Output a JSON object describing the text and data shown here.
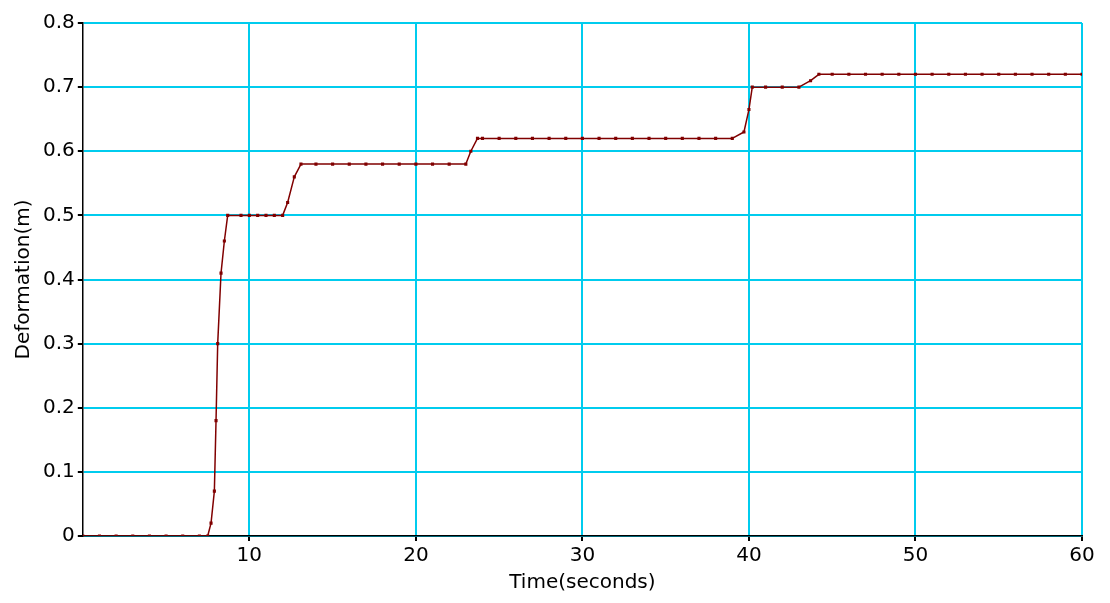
{
  "chart_data": {
    "type": "line",
    "xlabel": "Time(seconds)",
    "ylabel": "Deformation(m)",
    "xlim": [
      0,
      60
    ],
    "xticks": [
      10,
      20,
      30,
      40,
      50,
      60
    ],
    "ylim": [
      0,
      0.8
    ],
    "yticks": [
      0,
      0.1,
      0.2,
      0.3,
      0.4,
      0.5,
      0.6,
      0.7,
      0.8
    ],
    "grid": true,
    "legend": false,
    "marker": "square",
    "line_style": "solid",
    "series": [
      {
        "color": "#800000",
        "x": [
          0,
          1,
          2,
          3,
          4,
          5,
          6,
          7,
          7.5,
          7.7,
          7.9,
          8.0,
          8.1,
          8.3,
          8.5,
          8.7,
          9.5,
          10,
          10.5,
          11,
          11.5,
          12,
          12.3,
          12.7,
          13.1,
          14,
          15,
          16,
          17,
          18,
          19,
          20,
          21,
          22,
          23,
          23.3,
          23.7,
          24,
          25,
          26,
          27,
          28,
          29,
          30,
          31,
          32,
          33,
          34,
          35,
          36,
          37,
          38,
          39,
          39.7,
          40,
          40.2,
          41,
          42,
          43,
          43.7,
          44.2,
          45,
          46,
          47,
          48,
          49,
          50,
          51,
          52,
          53,
          54,
          55,
          56,
          57,
          58,
          59,
          60
        ],
        "values": [
          0,
          0,
          0,
          0,
          0,
          0,
          0,
          0,
          0,
          0.02,
          0.07,
          0.18,
          0.3,
          0.41,
          0.46,
          0.5,
          0.5,
          0.5,
          0.5,
          0.5,
          0.5,
          0.5,
          0.52,
          0.56,
          0.58,
          0.58,
          0.58,
          0.58,
          0.58,
          0.58,
          0.58,
          0.58,
          0.58,
          0.58,
          0.58,
          0.6,
          0.62,
          0.62,
          0.62,
          0.62,
          0.62,
          0.62,
          0.62,
          0.62,
          0.62,
          0.62,
          0.62,
          0.62,
          0.62,
          0.62,
          0.62,
          0.62,
          0.62,
          0.63,
          0.665,
          0.7,
          0.7,
          0.7,
          0.7,
          0.71,
          0.72,
          0.72,
          0.72,
          0.72,
          0.72,
          0.72,
          0.72,
          0.72,
          0.72,
          0.72,
          0.72,
          0.72,
          0.72,
          0.72,
          0.72,
          0.72,
          0.72
        ]
      }
    ]
  }
}
